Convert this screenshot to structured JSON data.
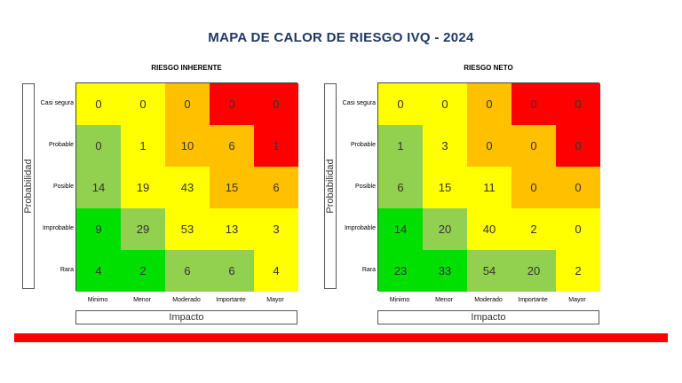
{
  "title": "MAPA DE CALOR DE RIESGO IVQ - 2024",
  "chart_data": [
    {
      "type": "heatmap",
      "title": "RIESGO INHERENTE",
      "xlabel": "Impacto",
      "ylabel": "Probabilidad",
      "x_categories": [
        "Minimo",
        "Menor",
        "Moderado",
        "Importante",
        "Mayor"
      ],
      "y_categories": [
        "Casi segura",
        "Probable",
        "Posible",
        "Improbable",
        "Rara"
      ],
      "values": [
        [
          0,
          0,
          0,
          0,
          0
        ],
        [
          0,
          1,
          10,
          6,
          1
        ],
        [
          14,
          19,
          43,
          15,
          6
        ],
        [
          9,
          29,
          53,
          13,
          3
        ],
        [
          4,
          2,
          6,
          6,
          4
        ]
      ],
      "zones": [
        [
          "yellow",
          "yellow",
          "orange",
          "red",
          "red"
        ],
        [
          "lightgreen",
          "yellow",
          "orange",
          "orange",
          "red"
        ],
        [
          "lightgreen",
          "yellow",
          "yellow",
          "orange",
          "orange"
        ],
        [
          "green",
          "lightgreen",
          "yellow",
          "yellow",
          "yellow"
        ],
        [
          "green",
          "green",
          "lightgreen",
          "lightgreen",
          "yellow"
        ]
      ]
    },
    {
      "type": "heatmap",
      "title": "RIESGO NETO",
      "xlabel": "Impacto",
      "ylabel": "Probabilidad",
      "x_categories": [
        "Minimo",
        "Menor",
        "Moderado",
        "Importante",
        "Mayor"
      ],
      "y_categories": [
        "Casi segura",
        "Probable",
        "Posible",
        "Improbable",
        "Rara"
      ],
      "values": [
        [
          0,
          0,
          0,
          0,
          0
        ],
        [
          1,
          3,
          0,
          0,
          0
        ],
        [
          6,
          15,
          11,
          0,
          0
        ],
        [
          14,
          20,
          40,
          2,
          0
        ],
        [
          23,
          33,
          54,
          20,
          2
        ]
      ],
      "zones": [
        [
          "yellow",
          "yellow",
          "orange",
          "red",
          "red"
        ],
        [
          "lightgreen",
          "yellow",
          "orange",
          "orange",
          "red"
        ],
        [
          "lightgreen",
          "yellow",
          "yellow",
          "orange",
          "orange"
        ],
        [
          "green",
          "lightgreen",
          "yellow",
          "yellow",
          "yellow"
        ],
        [
          "green",
          "green",
          "lightgreen",
          "lightgreen",
          "yellow"
        ]
      ]
    }
  ],
  "colors": {
    "yellow": "#ffff00",
    "orange": "#ffc000",
    "red": "#ff0000",
    "lightgreen": "#92d050",
    "green": "#00e000",
    "title": "#1f3864",
    "footer_bar": "#ff0000"
  }
}
